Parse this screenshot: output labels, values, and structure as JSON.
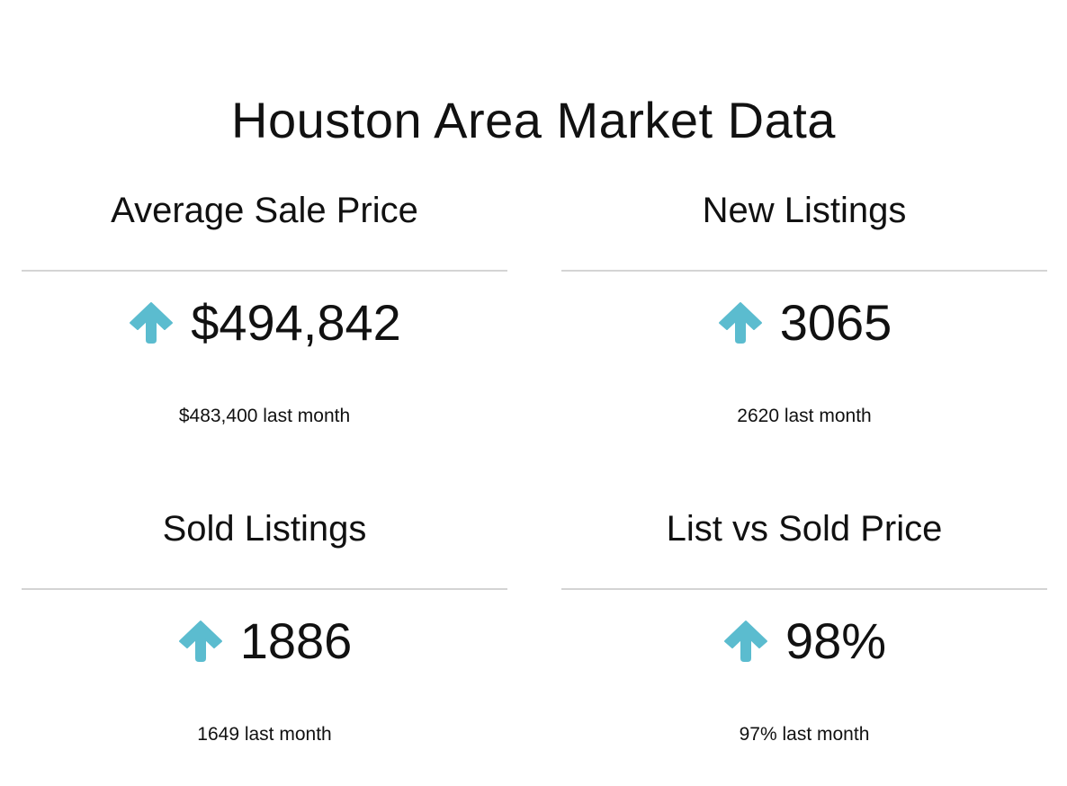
{
  "title": "Houston Area Market Data",
  "colors": {
    "arrow": "#5bbccf",
    "divider": "#d4d4d4",
    "text": "#111111"
  },
  "cards": [
    {
      "title": "Average Sale Price",
      "trend_icon": "arrow-up-icon",
      "value": "$494,842",
      "previous": "$483,400 last month"
    },
    {
      "title": "New Listings",
      "trend_icon": "arrow-up-icon",
      "value": "3065",
      "previous": "2620 last month"
    },
    {
      "title": "Sold Listings",
      "trend_icon": "arrow-up-icon",
      "value": "1886",
      "previous": "1649 last month"
    },
    {
      "title": "List vs Sold Price",
      "trend_icon": "arrow-up-icon",
      "value": "98%",
      "previous": "97% last month"
    }
  ]
}
